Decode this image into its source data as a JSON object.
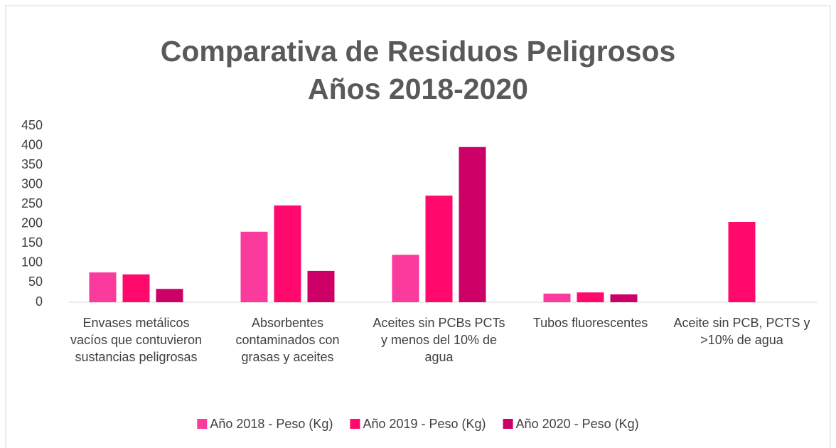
{
  "chart_data": {
    "type": "bar",
    "title": [
      "Comparativa de Residuos Peligrosos",
      "Años 2018-2020"
    ],
    "categories": [
      "Envases  metálicos vacíos que contuvieron sustancias peligrosas",
      "Absorbentes contaminados con grasas y aceites",
      "Aceites sin PCBs PCTs y menos del 10% de agua",
      "Tubos fluorescentes",
      "Aceite sin PCB, PCTS y >10% de agua"
    ],
    "series": [
      {
        "name": "Año 2018 - Peso (Kg)",
        "color": "#fa3a9c",
        "values": [
          76,
          180,
          121,
          22,
          null
        ]
      },
      {
        "name": "Año 2019 - Peso (Kg)",
        "color": "#ff0a6c",
        "values": [
          71,
          247,
          272,
          25,
          205
        ]
      },
      {
        "name": "Año 2020 - Peso (Kg)",
        "color": "#cc0066",
        "values": [
          34,
          80,
          396,
          20,
          null
        ]
      }
    ],
    "ylim": [
      0,
      450
    ],
    "yticks": [
      0,
      50,
      100,
      150,
      200,
      250,
      300,
      350,
      400,
      450
    ],
    "grid": false,
    "legend": "bottom"
  }
}
